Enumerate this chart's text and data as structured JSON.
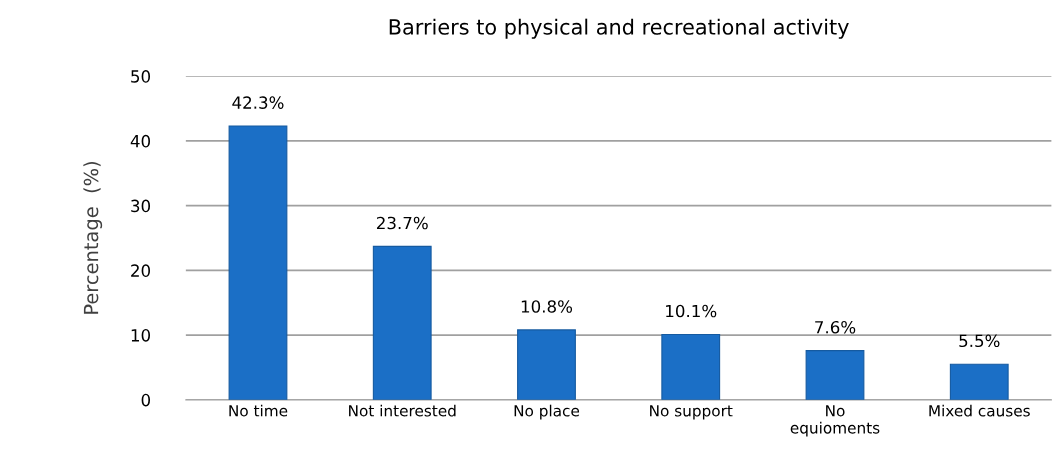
{
  "chart_data": {
    "type": "bar",
    "title": "Barriers to physical and recreational activity",
    "ylabel": "Percentage  (%)",
    "categories": [
      "No time",
      "Not interested",
      "No place",
      "No support",
      "No\nequioments",
      "Mixed causes"
    ],
    "values": [
      42.3,
      23.7,
      10.8,
      10.1,
      7.6,
      5.5
    ],
    "value_labels": [
      "42.3%",
      "23.7%",
      "10.8%",
      "10.1%",
      "7.6%",
      "5.5%"
    ],
    "color": "#1b6fc6",
    "ylim": [
      0,
      50
    ],
    "yticks": [
      0,
      10,
      20,
      30,
      40,
      50
    ],
    "grid": "y",
    "legend": false
  }
}
